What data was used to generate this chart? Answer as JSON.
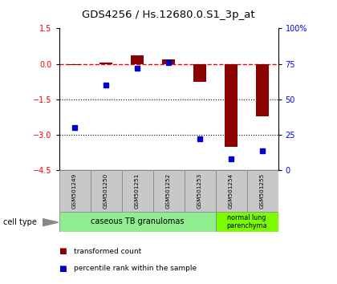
{
  "title": "GDS4256 / Hs.12680.0.S1_3p_at",
  "samples": [
    "GSM501249",
    "GSM501250",
    "GSM501251",
    "GSM501252",
    "GSM501253",
    "GSM501254",
    "GSM501255"
  ],
  "red_values": [
    -0.05,
    0.05,
    0.35,
    0.2,
    -0.75,
    -3.5,
    -2.2
  ],
  "blue_values_pct": [
    30,
    60,
    72,
    76,
    22,
    8,
    14
  ],
  "ylim_left": [
    -4.5,
    1.5
  ],
  "ylim_right": [
    0,
    100
  ],
  "left_ticks": [
    1.5,
    0,
    -1.5,
    -3,
    -4.5
  ],
  "right_ticks": [
    100,
    75,
    50,
    25,
    0
  ],
  "right_tick_labels": [
    "100%",
    "75",
    "50",
    "25",
    "0"
  ],
  "hlines": [
    -1.5,
    -3.0
  ],
  "dashed_hline": 0,
  "bar_width": 0.4,
  "bar_color": "#8B0000",
  "dot_color": "#0000CC",
  "group1_color": "#90EE90",
  "group2_color": "#7CFC00",
  "sample_box_color": "#C8C8C8",
  "cell_type_label": "cell type"
}
